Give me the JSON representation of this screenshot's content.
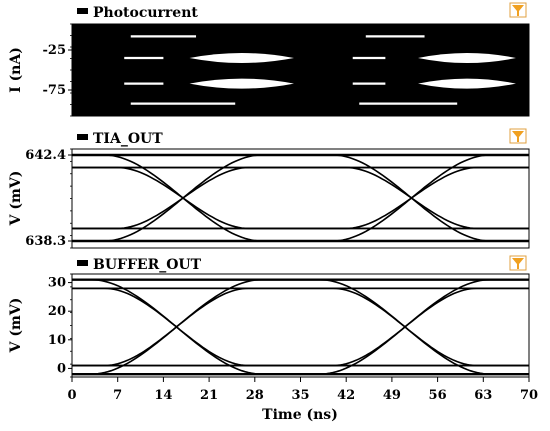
{
  "chart_data": [
    {
      "type": "line",
      "title": "Photocurrent",
      "ylabel": "I (nA)",
      "xlabel": "",
      "xlim": [
        0,
        70
      ],
      "ylim": [
        -100,
        0
      ],
      "yticks": [
        -25,
        -75
      ],
      "x_shared_ticks": false,
      "background": "#000000",
      "trace_color": "#ffffff",
      "series": [
        {
          "values": [
            -8
          ]
        },
        {
          "values": [
            -35
          ]
        },
        {
          "values": [
            -67
          ]
        },
        {
          "values": [
            -92
          ]
        }
      ]
    },
    {
      "type": "line",
      "title": "TIA_OUT",
      "ylabel": "V (mV)",
      "xlabel": "",
      "xlim": [
        0,
        70
      ],
      "ylim": [
        638.3,
        642.4
      ],
      "yticks": [
        642.4,
        638.3
      ],
      "background": "#ffffff",
      "trace_color": "#000000",
      "series": [
        {
          "values": [
            642.4,
            638.3
          ]
        },
        {
          "values": [
            641.8,
            638.9
          ]
        }
      ]
    },
    {
      "type": "line",
      "title": "BUFFER_OUT",
      "ylabel": "V (mV)",
      "xlabel": "Time (ns)",
      "xlim": [
        0,
        70
      ],
      "ylim": [
        -3,
        33
      ],
      "yticks": [
        30,
        20,
        10,
        0
      ],
      "xticks": [
        0,
        7,
        14,
        21,
        28,
        35,
        42,
        49,
        56,
        63,
        70
      ],
      "background": "#ffffff",
      "trace_color": "#000000",
      "series": [
        {
          "values": [
            31,
            -2
          ]
        },
        {
          "values": [
            28,
            1
          ]
        }
      ]
    }
  ]
}
